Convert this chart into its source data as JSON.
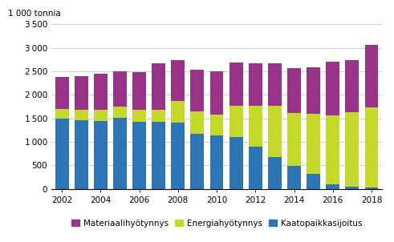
{
  "years": [
    2002,
    2003,
    2004,
    2005,
    2006,
    2007,
    2008,
    2009,
    2010,
    2011,
    2012,
    2013,
    2014,
    2015,
    2016,
    2017,
    2018
  ],
  "kaatopaikkasijoitus": [
    1490,
    1450,
    1435,
    1510,
    1420,
    1420,
    1410,
    1175,
    1140,
    1100,
    890,
    670,
    480,
    310,
    100,
    50,
    25
  ],
  "energiahyodynnys": [
    215,
    230,
    250,
    245,
    255,
    265,
    460,
    465,
    430,
    660,
    870,
    1100,
    1130,
    1280,
    1460,
    1575,
    1710
  ],
  "materiaalihyodynnys": [
    680,
    720,
    755,
    745,
    800,
    980,
    870,
    900,
    935,
    920,
    910,
    905,
    960,
    1000,
    1140,
    1115,
    1320
  ],
  "color_kaatopaikka": "#2E75B6",
  "color_energia": "#C5D92D",
  "color_materiaali": "#993388",
  "ylabel": "1 000 tonnia",
  "ylim": [
    0,
    3500
  ],
  "yticks": [
    0,
    500,
    1000,
    1500,
    2000,
    2500,
    3000,
    3500
  ],
  "xtick_years": [
    2002,
    2004,
    2006,
    2008,
    2010,
    2012,
    2014,
    2016,
    2018
  ],
  "legend_labels": [
    "Materiaalihyötynnys",
    "Energiahyötynnys",
    "Kaatopaikkasijoitus"
  ],
  "background_color": "#ffffff"
}
